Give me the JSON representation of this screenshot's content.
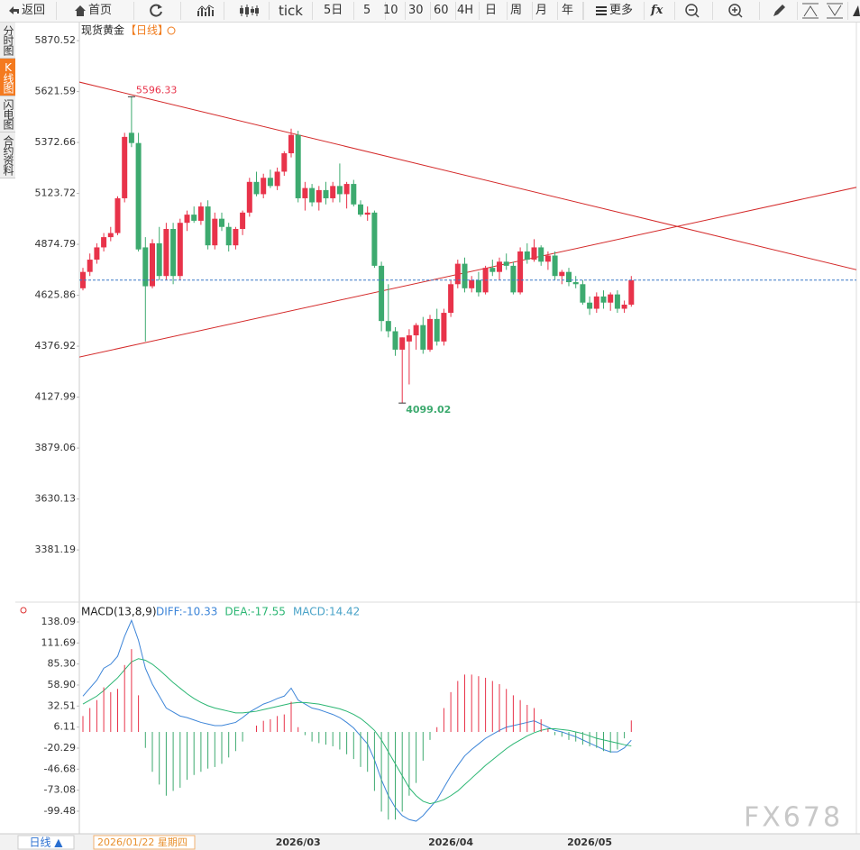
{
  "toolbar": {
    "back": "返回",
    "home": "首页",
    "tick": "tick",
    "five_day": "5日",
    "periods": [
      "5",
      "10",
      "30",
      "60",
      "4H",
      "日",
      "周",
      "月",
      "年"
    ],
    "more": "更多",
    "fx": "fx"
  },
  "sidebar": [
    "分时图",
    "K线图",
    "闪电图",
    "合约资料"
  ],
  "chart_data": [
    {
      "type": "candlestick",
      "title": "现货黄金",
      "subtitle": "【日线】",
      "up_color": "#e8334a",
      "down_color": "#3daa6f",
      "ylim": [
        3126,
        5959
      ],
      "yticks": [
        5870.52,
        5621.59,
        5372.66,
        5123.72,
        4874.79,
        4625.86,
        4376.92,
        4127.99,
        3879.06,
        3630.13,
        3381.19
      ],
      "categories": [
        null,
        null,
        null,
        null,
        null,
        null,
        null,
        null,
        null,
        null,
        null,
        null,
        null,
        null,
        null,
        null,
        null,
        null,
        null,
        null,
        null,
        null,
        null,
        null,
        null,
        null,
        null,
        null,
        null,
        null,
        null,
        "2026/03",
        null,
        null,
        null,
        null,
        null,
        null,
        null,
        null,
        null,
        null,
        null,
        null,
        null,
        null,
        null,
        null,
        null,
        null,
        null,
        null,
        null,
        "2026/04",
        null,
        null,
        null,
        null,
        null,
        null,
        null,
        null,
        null,
        null,
        null,
        null,
        null,
        null,
        null,
        null,
        null,
        null,
        null,
        "2026/05",
        null,
        null,
        null,
        null
      ],
      "candles": [
        [
          4660,
          4760,
          4650,
          4740
        ],
        [
          4740,
          4830,
          4720,
          4800
        ],
        [
          4800,
          4880,
          4780,
          4860
        ],
        [
          4860,
          4930,
          4840,
          4910
        ],
        [
          4910,
          4960,
          4890,
          4930
        ],
        [
          4930,
          5110,
          4920,
          5100
        ],
        [
          5100,
          5420,
          5080,
          5400
        ],
        [
          5420,
          5596.33,
          5350,
          5370
        ],
        [
          5370,
          5420,
          4840,
          4850
        ],
        [
          4860,
          4910,
          4400,
          4670
        ],
        [
          4670,
          4900,
          4660,
          4880
        ],
        [
          4880,
          4960,
          4700,
          4720
        ],
        [
          4720,
          4980,
          4700,
          4950
        ],
        [
          4950,
          4980,
          4680,
          4720
        ],
        [
          4720,
          5000,
          4700,
          4980
        ],
        [
          4980,
          5040,
          4940,
          5020
        ],
        [
          5020,
          5060,
          4980,
          4990
        ],
        [
          4990,
          5080,
          4970,
          5060
        ],
        [
          5060,
          5090,
          4850,
          4870
        ],
        [
          4870,
          5030,
          4850,
          5000
        ],
        [
          5000,
          5030,
          4940,
          4960
        ],
        [
          4960,
          4980,
          4840,
          4870
        ],
        [
          4870,
          4960,
          4850,
          4950
        ],
        [
          4950,
          5040,
          4920,
          5030
        ],
        [
          5030,
          5200,
          5010,
          5180
        ],
        [
          5180,
          5230,
          5110,
          5120
        ],
        [
          5120,
          5220,
          5100,
          5200
        ],
        [
          5200,
          5240,
          5150,
          5160
        ],
        [
          5160,
          5250,
          5140,
          5230
        ],
        [
          5230,
          5330,
          5210,
          5320
        ],
        [
          5320,
          5440,
          5300,
          5410
        ],
        [
          5410,
          5430,
          5080,
          5100
        ],
        [
          5100,
          5180,
          5040,
          5150
        ],
        [
          5150,
          5170,
          5060,
          5080
        ],
        [
          5080,
          5160,
          5040,
          5140
        ],
        [
          5140,
          5180,
          5070,
          5100
        ],
        [
          5100,
          5180,
          5080,
          5160
        ],
        [
          5160,
          5270,
          5080,
          5120
        ],
        [
          5120,
          5180,
          5050,
          5170
        ],
        [
          5170,
          5190,
          5060,
          5070
        ],
        [
          5070,
          5090,
          5010,
          5020
        ],
        [
          5020,
          5060,
          4990,
          5030
        ],
        [
          5030,
          5040,
          4760,
          4770
        ],
        [
          4770,
          4790,
          4450,
          4500
        ],
        [
          4500,
          4680,
          4420,
          4450
        ],
        [
          4450,
          4470,
          4330,
          4360
        ],
        [
          4360,
          4420,
          4099.02,
          4420
        ],
        [
          4400,
          4460,
          4190,
          4430
        ],
        [
          4430,
          4490,
          4360,
          4480
        ],
        [
          4480,
          4520,
          4340,
          4360
        ],
        [
          4360,
          4530,
          4350,
          4510
        ],
        [
          4510,
          4560,
          4380,
          4400
        ],
        [
          4400,
          4560,
          4380,
          4540
        ],
        [
          4540,
          4700,
          4520,
          4680
        ],
        [
          4680,
          4800,
          4660,
          4780
        ],
        [
          4780,
          4810,
          4640,
          4660
        ],
        [
          4660,
          4720,
          4640,
          4700
        ],
        [
          4700,
          4740,
          4620,
          4640
        ],
        [
          4640,
          4770,
          4630,
          4760
        ],
        [
          4760,
          4800,
          4720,
          4740
        ],
        [
          4740,
          4810,
          4700,
          4790
        ],
        [
          4790,
          4830,
          4750,
          4770
        ],
        [
          4770,
          4790,
          4630,
          4640
        ],
        [
          4640,
          4860,
          4630,
          4840
        ],
        [
          4840,
          4880,
          4780,
          4800
        ],
        [
          4800,
          4900,
          4790,
          4860
        ],
        [
          4860,
          4870,
          4770,
          4790
        ],
        [
          4790,
          4840,
          4750,
          4820
        ],
        [
          4820,
          4840,
          4700,
          4720
        ],
        [
          4720,
          4750,
          4680,
          4740
        ],
        [
          4740,
          4760,
          4670,
          4690
        ],
        [
          4690,
          4720,
          4660,
          4680
        ],
        [
          4680,
          4700,
          4580,
          4590
        ],
        [
          4590,
          4620,
          4530,
          4560
        ],
        [
          4560,
          4640,
          4540,
          4620
        ],
        [
          4620,
          4650,
          4560,
          4590
        ],
        [
          4590,
          4640,
          4550,
          4630
        ],
        [
          4630,
          4650,
          4540,
          4560
        ],
        [
          4560,
          4600,
          4540,
          4580
        ],
        [
          4580,
          4720,
          4570,
          4700
        ]
      ],
      "trendlines": [
        {
          "color": "#d42a2a",
          "start": [
            -0.52,
            5668
          ],
          "end": [
            111.9,
            4747
          ]
        },
        {
          "color": "#d42a2a",
          "start": [
            -0.52,
            4324
          ],
          "end": [
            111.9,
            5157
          ]
        }
      ],
      "last_price_color": "#3a78c8",
      "cursor_label": "2026/01/22 星期四",
      "period_button": "日线 ▲"
    },
    {
      "type": "macd",
      "title": "MACD(13,8,9)",
      "ylim": [
        -124.4,
        160.7
      ],
      "yticks": [
        138.09,
        111.69,
        {
          "value": 85.3,
          "label": "85.30"
        },
        {
          "value": 58.9,
          "label": "58.90"
        },
        32.51,
        6.11,
        -20.29,
        -46.68,
        -73.08,
        -99.48
      ],
      "series": [
        {
          "name": "DIFF:-10.33",
          "color": "#3d85d8",
          "values": [
            45,
            55,
            65,
            80,
            85,
            95,
            120,
            140,
            115,
            80,
            60,
            45,
            30,
            25,
            20,
            18,
            15,
            12,
            10,
            8,
            8,
            10,
            12,
            18,
            25,
            30,
            35,
            38,
            42,
            45,
            55,
            40,
            35,
            30,
            28,
            25,
            22,
            18,
            12,
            5,
            -5,
            -15,
            -35,
            -60,
            -80,
            -95,
            -105,
            -110,
            -112,
            -105,
            -95,
            -85,
            -70,
            -55,
            -42,
            -30,
            -22,
            -15,
            -8,
            -3,
            2,
            6,
            8,
            10,
            12,
            14,
            10,
            6,
            2,
            0,
            -3,
            -6,
            -10,
            -14,
            -18,
            -22,
            -25,
            -25,
            -20,
            -10.33
          ]
        },
        {
          "name": "DEA:-17.55",
          "color": "#2bb673",
          "values": [
            35,
            40,
            45,
            52,
            60,
            68,
            78,
            88,
            92,
            90,
            85,
            78,
            70,
            62,
            55,
            48,
            42,
            37,
            33,
            30,
            28,
            26,
            24,
            24,
            25,
            26,
            28,
            30,
            32,
            34,
            36,
            37,
            37,
            36,
            35,
            33,
            31,
            29,
            26,
            22,
            17,
            10,
            2,
            -10,
            -25,
            -40,
            -55,
            -70,
            -80,
            -87,
            -90,
            -88,
            -85,
            -80,
            -74,
            -66,
            -58,
            -50,
            -42,
            -35,
            -28,
            -21,
            -15,
            -10,
            -5,
            -1,
            2,
            4,
            4,
            3,
            2,
            0,
            -2,
            -5,
            -8,
            -10,
            -12,
            -14,
            -16,
            -17.55
          ]
        },
        {
          "name": "MACD:14.42",
          "color": "#4aa3c8",
          "up_color": "#e8334a",
          "down_color": "#3daa6f",
          "values": [
            20,
            30,
            40,
            56,
            50,
            54,
            84,
            104,
            46,
            -20,
            -50,
            -66,
            -80,
            -74,
            -70,
            -60,
            -54,
            -50,
            -46,
            -44,
            -40,
            -32,
            -24,
            -12,
            0,
            8,
            14,
            16,
            20,
            22,
            38,
            6,
            -4,
            -12,
            -14,
            -16,
            -18,
            -22,
            -28,
            -34,
            -44,
            -50,
            -74,
            -100,
            -110,
            -110,
            -100,
            -80,
            -64,
            -36,
            -10,
            6,
            30,
            50,
            64,
            72,
            72,
            70,
            68,
            64,
            60,
            54,
            46,
            40,
            34,
            30,
            16,
            4,
            -4,
            -6,
            -10,
            -12,
            -16,
            -18,
            -20,
            -24,
            -26,
            -22,
            -8,
            14.42
          ]
        }
      ]
    }
  ],
  "watermark": "FX678"
}
